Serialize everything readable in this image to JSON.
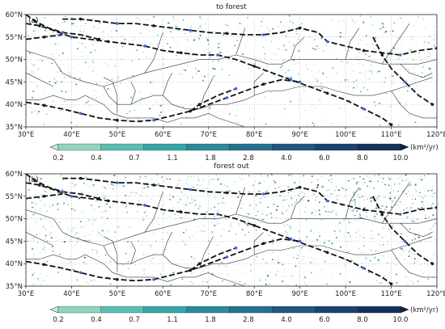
{
  "panels": [
    {
      "id": "a",
      "label": "(a)",
      "title": "to forest",
      "lat_labels": [
        "60°N",
        "55°N",
        "50°N",
        "45°N",
        "40°N",
        "35°N"
      ],
      "lon_labels": [
        "30°E",
        "40°E",
        "50°E",
        "60°E",
        "70°E",
        "80°E",
        "90°E",
        "100°E",
        "110°E",
        "120°E"
      ],
      "colorbar_ticks": [
        "0.2",
        "0.4",
        "0.7",
        "1.1",
        "1.8",
        "2.8",
        "4.0",
        "6.0",
        "8.0",
        "10.0"
      ],
      "colorbar_unit": "(km²/yr)"
    },
    {
      "id": "b",
      "label": "(b)",
      "title": "forest out",
      "lat_labels": [
        "60°N",
        "55°N",
        "50°N",
        "45°N",
        "40°N",
        "35°N"
      ],
      "lon_labels": [
        "30°E",
        "40°E",
        "50°E",
        "60°E",
        "70°E",
        "80°E",
        "90°E",
        "100°E",
        "110°E",
        "120°E"
      ],
      "colorbar_ticks": [
        "0.2",
        "0.4",
        "0.7",
        "1.1",
        "1.8",
        "2.8",
        "4.0",
        "6.0",
        "8.0",
        "10.0"
      ],
      "colorbar_unit": "(km²/yr)"
    }
  ],
  "colorbar_colors": [
    "#c8ecd6",
    "#8fd5c0",
    "#58bfb0",
    "#36a6a8",
    "#2b8a9d",
    "#26708f",
    "#20577e",
    "#1b4370",
    "#15325e",
    "#0d1f45"
  ],
  "route_color": "#111111",
  "route_node_colors": [
    "#1a1a1a",
    "#3a6fd0"
  ]
}
